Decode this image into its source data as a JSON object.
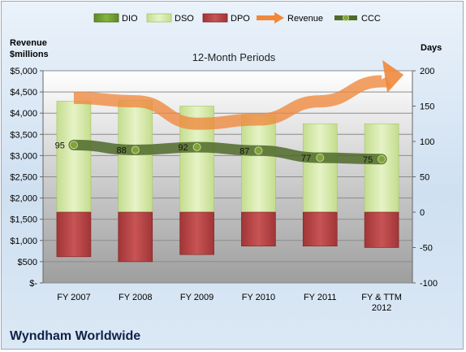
{
  "chart_data": {
    "type": "bar",
    "title": "12-Month Periods",
    "company": "Wyndham Worldwide",
    "left_axis_title": "Revenue\n$millions",
    "right_axis_title": "Days",
    "categories": [
      "FY 2007",
      "FY 2008",
      "FY 2009",
      "FY 2010",
      "FY 2011",
      "FY & TTM\n2012"
    ],
    "left_axis": {
      "min": 0,
      "max": 5000,
      "step": 500,
      "tick_labels": [
        "$-",
        "$500",
        "$1,000",
        "$1,500",
        "$2,000",
        "$2,500",
        "$3,000",
        "$3,500",
        "$4,000",
        "$4,500",
        "$5,000"
      ]
    },
    "right_axis": {
      "min": -100,
      "max": 200,
      "step": 50,
      "tick_labels": [
        "-100",
        "-50",
        "0",
        "50",
        "100",
        "150",
        "200"
      ]
    },
    "series": [
      {
        "name": "DIO",
        "kind": "bar",
        "color": "#6e9a2c",
        "values": [
          0,
          0,
          0,
          0,
          0,
          0
        ]
      },
      {
        "name": "DSO",
        "kind": "bar",
        "color": "#d3e7a6",
        "values": [
          157,
          158,
          150,
          137,
          125,
          125
        ]
      },
      {
        "name": "DPO",
        "kind": "bar",
        "color": "#b84344",
        "values": [
          -63,
          -70,
          -60,
          -48,
          -48,
          -50
        ]
      },
      {
        "name": "Revenue",
        "kind": "line",
        "color": "#f0883c",
        "values": [
          4360,
          4280,
          3750,
          3850,
          4280,
          4750
        ]
      },
      {
        "name": "CCC",
        "kind": "line",
        "color": "#4f6a2a",
        "values": [
          95,
          88,
          92,
          87,
          77,
          75
        ]
      }
    ],
    "ccc_labels": [
      "95",
      "88",
      "92",
      "87",
      "77",
      "75"
    ]
  }
}
